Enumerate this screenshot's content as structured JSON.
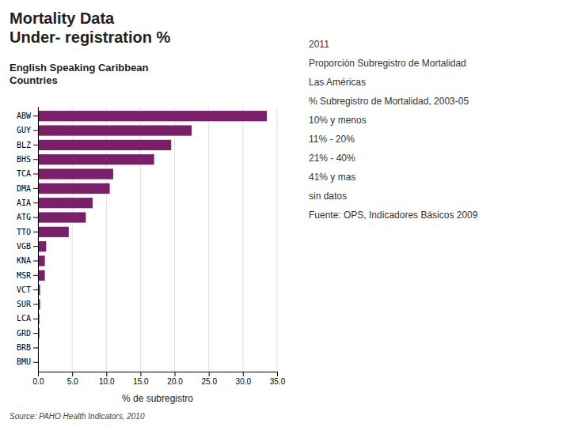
{
  "chart_data": {
    "type": "bar",
    "orientation": "horizontal",
    "title": "Mortality Data\nUnder- registration %",
    "subtitle": "English Speaking Caribbean\nCountries",
    "x_label": "% de subregistro",
    "source": "Source: PAHO Health Indicators, 2010",
    "categories": [
      "ABW",
      "GUY",
      "BLZ",
      "BHS",
      "TCA",
      "DMA",
      "AIA",
      "ATG",
      "TTO",
      "VGB",
      "KNA",
      "MSR",
      "VCT",
      "SUR",
      "LCA",
      "GRD",
      "BRB",
      "BMU"
    ],
    "values": [
      33.5,
      22.5,
      19.5,
      17.0,
      11.0,
      10.5,
      8.0,
      7.0,
      4.5,
      1.2,
      1.0,
      1.0,
      0.3,
      0.3,
      0.2,
      0.2,
      0.1,
      0.0
    ],
    "color": "#7B1F6A",
    "xlim": [
      0,
      35.0
    ],
    "xticks": [
      {
        "value": 0.0,
        "label": "0.0"
      },
      {
        "value": 5.0,
        "label": "5.0"
      },
      {
        "value": 10.0,
        "label": "10.0"
      },
      {
        "value": 15.0,
        "label": "15.0"
      },
      {
        "value": 20.0,
        "label": "20.0"
      },
      {
        "value": 25.0,
        "label": "25.0"
      },
      {
        "value": 30.0,
        "label": "30.0"
      },
      {
        "value": 35.0,
        "label": "35.0"
      }
    ],
    "grid": true,
    "annotations": [
      "2011",
      "Proporción Subregistro de Mortalidad",
      "Las Américas",
      "% Subregistro de Mortalidad, 2003-05",
      "10% y menos",
      "11% - 20%",
      "21% - 40%",
      "41% y mas",
      "sin datos",
      "Fuente: OPS, Indicadores Básicos 2009"
    ]
  }
}
